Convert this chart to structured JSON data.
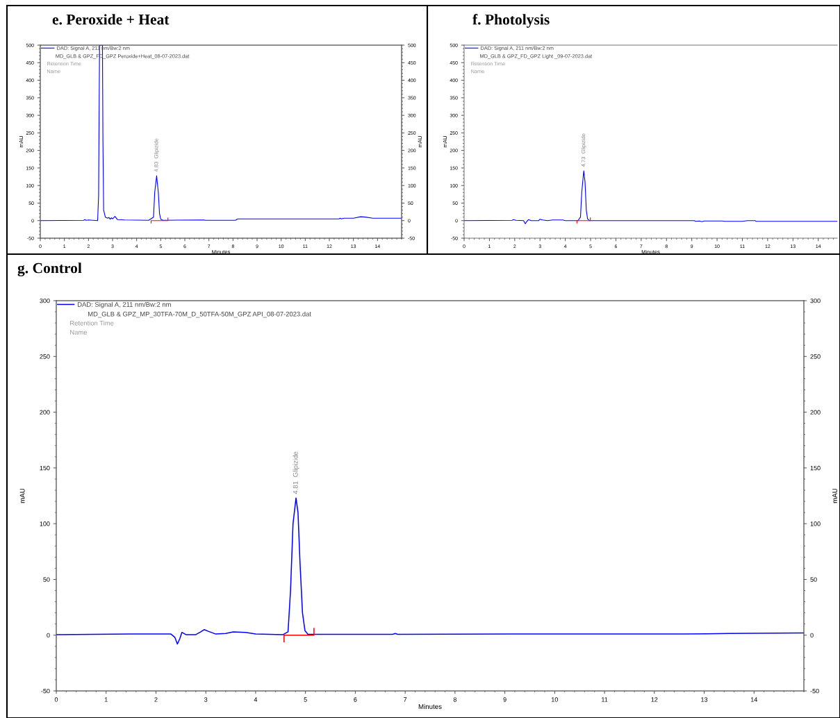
{
  "chart_data": [
    {
      "type": "line",
      "title": "e. Peroxide + Heat",
      "xlabel": "Minutes",
      "ylabel": "mAU",
      "y2label": "mAU",
      "xlim": [
        0,
        15
      ],
      "ylim": [
        -50,
        500
      ],
      "y2lim": [
        -50,
        500
      ],
      "xticks": [
        0,
        1,
        2,
        3,
        4,
        5,
        6,
        7,
        8,
        9,
        10,
        11,
        12,
        13,
        14
      ],
      "yticks": [
        -50,
        0,
        50,
        100,
        150,
        200,
        250,
        300,
        350,
        400,
        450,
        500
      ],
      "y2ticks": [
        -50,
        0,
        50,
        100,
        150,
        200,
        250,
        300,
        350,
        400,
        450,
        500
      ],
      "legend": "top left",
      "grid": false,
      "marker": "none",
      "line_style": "solid",
      "annotations": [
        {
          "text": "4.83  Glipizide",
          "x": 4.83,
          "y": 128
        },
        "MD_GLB & GPZ_FD_GPZ Peroxide+Heat_08-07-2023.dat",
        "Retention Time",
        "Name"
      ],
      "series": [
        {
          "name": "DAD: Signal A, 211 nm/Bw:2 nm",
          "color": "#0000ff",
          "x": [
            0,
            1.8,
            1.85,
            1.9,
            2.0,
            2.38,
            2.42,
            2.46,
            2.58,
            2.6,
            2.63,
            2.7,
            2.8,
            2.85,
            2.9,
            2.95,
            3.0,
            3.1,
            3.2,
            3.5,
            4.5,
            4.7,
            4.75,
            4.83,
            4.9,
            4.95,
            5.0,
            5.1,
            6.8,
            6.85,
            8.1,
            8.2,
            12.4,
            12.45,
            12.5,
            12.6,
            13.0,
            13.3,
            13.5,
            13.8,
            15
          ],
          "values": [
            0,
            1,
            3,
            1,
            2,
            0,
            70,
            500,
            500,
            230,
            30,
            10,
            7,
            9,
            4,
            8,
            5,
            12,
            3,
            2,
            1,
            10,
            80,
            128,
            80,
            20,
            4,
            1,
            2,
            1,
            1,
            5,
            5,
            7,
            5,
            7,
            7,
            11,
            10,
            7,
            7
          ]
        },
        {
          "color": "#ff0000",
          "x": [
            4.6,
            4.6,
            5.3,
            5.3
          ],
          "values": [
            -7,
            0,
            0,
            8
          ]
        }
      ]
    },
    {
      "type": "line",
      "title": "f. Photolysis",
      "xlabel": "Minutes",
      "ylabel": "mAU",
      "xlim": [
        0,
        14.75
      ],
      "ylim": [
        -50,
        500
      ],
      "xticks": [
        0,
        1,
        2,
        3,
        4,
        5,
        6,
        7,
        8,
        9,
        10,
        11,
        12,
        13,
        14
      ],
      "yticks": [
        -50,
        0,
        50,
        100,
        150,
        200,
        250,
        300,
        350,
        400,
        450,
        500
      ],
      "legend": "top left",
      "grid": false,
      "marker": "none",
      "line_style": "solid",
      "annotations": [
        {
          "text": "4.73  Glipizide",
          "x": 4.73,
          "y": 142
        },
        "MD_GLB & GPZ_FD_GPZ Light _09-07-2023.dat",
        "Retention Time",
        "Name"
      ],
      "series": [
        {
          "name": "DAD: Signal A, 211 nm/Bw:2 nm",
          "color": "#0000ff",
          "x": [
            0,
            1.9,
            1.95,
            2.05,
            2.35,
            2.42,
            2.48,
            2.55,
            2.65,
            2.95,
            3.0,
            3.1,
            3.3,
            3.5,
            3.9,
            4.0,
            4.5,
            4.6,
            4.65,
            4.73,
            4.78,
            4.83,
            4.88,
            4.95,
            9.1,
            9.15,
            9.3,
            9.4,
            9.5,
            10.2,
            10.3,
            11.0,
            11.2,
            11.5,
            11.55,
            14.75
          ],
          "values": [
            0,
            1,
            3,
            1,
            0,
            -9,
            -2,
            3,
            0,
            0,
            4,
            2,
            0,
            2,
            2,
            0,
            0,
            10,
            80,
            142,
            110,
            30,
            5,
            0,
            0,
            -2,
            -1,
            -3,
            -1,
            -1,
            -2,
            -2,
            0,
            0,
            -2,
            -2
          ]
        },
        {
          "color": "#ff0000",
          "x": [
            4.46,
            4.46,
            4.99,
            4.99
          ],
          "values": [
            -7,
            0,
            0,
            8
          ]
        }
      ]
    },
    {
      "type": "line",
      "title": "g. Control",
      "xlabel": "Minutes",
      "ylabel": "mAU",
      "y2label": "mAU",
      "xlim": [
        0,
        15
      ],
      "ylim": [
        -50,
        300
      ],
      "y2lim": [
        -50,
        300
      ],
      "xticks": [
        0,
        1,
        2,
        3,
        4,
        5,
        6,
        7,
        8,
        9,
        10,
        11,
        12,
        13,
        14
      ],
      "yticks": [
        -50,
        0,
        50,
        100,
        150,
        200,
        250,
        300
      ],
      "y2ticks": [
        -50,
        0,
        50,
        100,
        150,
        200,
        250,
        300
      ],
      "legend": "top left",
      "grid": false,
      "marker": "none",
      "line_style": "solid",
      "annotations": [
        {
          "text": "4.81  Glipizide",
          "x": 4.81,
          "y": 123
        },
        "MD_GLB & GPZ_MP_30TFA-70M_D_50TFA-50M_GPZ API_08-07-2023.dat",
        "Retention Time",
        "Name"
      ],
      "series": [
        {
          "name": "DAD: Signal A, 211 nm/Bw:2 nm",
          "color": "#0000ff",
          "x": [
            0,
            1.5,
            2.0,
            2.3,
            2.38,
            2.43,
            2.48,
            2.52,
            2.6,
            2.8,
            2.9,
            2.97,
            3.05,
            3.2,
            3.4,
            3.55,
            3.8,
            4.0,
            4.55,
            4.65,
            4.7,
            4.75,
            4.81,
            4.85,
            4.89,
            4.94,
            4.99,
            5.05,
            6.75,
            6.8,
            6.85,
            9.1,
            12.6,
            13.5,
            15
          ],
          "values": [
            0.5,
            1,
            1,
            1,
            -2,
            -8,
            -3,
            2.5,
            0.5,
            0.5,
            3,
            5,
            3.5,
            1,
            1.5,
            3,
            2.5,
            1,
            0.5,
            3,
            40,
            100,
            123,
            110,
            65,
            20,
            4,
            0.8,
            0.8,
            1.5,
            0.8,
            1,
            1,
            1.5,
            2
          ]
        },
        {
          "color": "#ff0000",
          "x": [
            4.57,
            4.57,
            5.17,
            5.17
          ],
          "values": [
            -6,
            0,
            0,
            6
          ]
        }
      ]
    }
  ]
}
